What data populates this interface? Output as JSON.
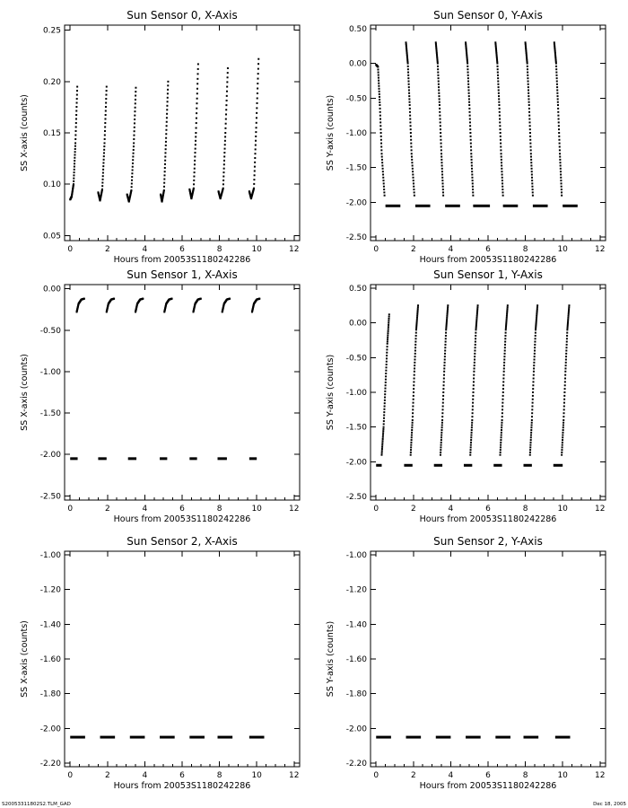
{
  "footer": {
    "left": "S20053311802S2.TLM_GAD",
    "right": "Dec 18, 2005"
  },
  "chart_data": [
    {
      "type": "scatter",
      "title": "Sun Sensor 0, X-Axis",
      "xlabel": "Hours from 20053S1180242286",
      "ylabel": "SS X-axis (counts)",
      "xlim": [
        -0.3,
        12.3
      ],
      "ylim": [
        0.045,
        0.255
      ],
      "xticks": [
        0,
        2,
        4,
        6,
        8,
        10,
        12
      ],
      "xtick_labels": [
        "0",
        "2",
        "4",
        "6",
        "8",
        "10",
        "12"
      ],
      "yticks": [
        0.05,
        0.1,
        0.15,
        0.2,
        0.25
      ],
      "ytick_labels": [
        "0.05",
        "0.10",
        "0.15",
        "0.20",
        "0.25"
      ],
      "segments": [
        {
          "x": [
            0.0,
            0.08,
            0.18,
            0.28,
            0.38
          ],
          "y": [
            0.085,
            0.088,
            0.1,
            0.14,
            0.195
          ]
        },
        {
          "x": [
            1.5,
            1.6,
            1.72,
            1.84,
            1.95
          ],
          "y": [
            0.092,
            0.084,
            0.095,
            0.14,
            0.195
          ]
        },
        {
          "x": [
            3.05,
            3.15,
            3.28,
            3.41,
            3.52
          ],
          "y": [
            0.09,
            0.083,
            0.094,
            0.14,
            0.194
          ]
        },
        {
          "x": [
            4.85,
            4.92,
            5.03,
            5.14,
            5.25
          ],
          "y": [
            0.09,
            0.083,
            0.094,
            0.145,
            0.2
          ]
        },
        {
          "x": [
            6.4,
            6.5,
            6.62,
            6.74,
            6.86
          ],
          "y": [
            0.095,
            0.086,
            0.096,
            0.15,
            0.217
          ]
        },
        {
          "x": [
            7.95,
            8.05,
            8.2,
            8.32,
            8.45
          ],
          "y": [
            0.093,
            0.086,
            0.096,
            0.15,
            0.213
          ]
        },
        {
          "x": [
            9.6,
            9.7,
            9.85,
            9.97,
            10.1
          ],
          "y": [
            0.093,
            0.086,
            0.096,
            0.155,
            0.222
          ]
        }
      ]
    },
    {
      "type": "scatter",
      "title": "Sun Sensor 0, Y-Axis",
      "xlabel": "Hours from 20053S1180242286",
      "ylabel": "SS Y-axis (counts)",
      "xlim": [
        -0.3,
        12.3
      ],
      "ylim": [
        -2.55,
        0.55
      ],
      "xticks": [
        0,
        2,
        4,
        6,
        8,
        10,
        12
      ],
      "xtick_labels": [
        "0",
        "2",
        "4",
        "6",
        "8",
        "10",
        "12"
      ],
      "yticks": [
        -2.5,
        -2.0,
        -1.5,
        -1.0,
        -0.5,
        0.0,
        0.5
      ],
      "ytick_labels": [
        "-2.50",
        "-2.00",
        "-1.50",
        "-1.00",
        "-0.50",
        "0.00",
        "0.50"
      ],
      "segments": [
        {
          "x": [
            0.0,
            0.1,
            0.2,
            0.3,
            0.45
          ],
          "y": [
            -0.02,
            -0.05,
            -0.6,
            -1.3,
            -1.9
          ]
        },
        {
          "x": [
            1.6,
            1.7,
            1.8,
            1.9,
            2.05
          ],
          "y": [
            0.3,
            0.0,
            -0.6,
            -1.3,
            -1.9
          ]
        },
        {
          "x": [
            3.2,
            3.3,
            3.4,
            3.5,
            3.6
          ],
          "y": [
            0.3,
            0.0,
            -0.6,
            -1.3,
            -1.9
          ]
        },
        {
          "x": [
            4.8,
            4.9,
            5.0,
            5.1,
            5.2
          ],
          "y": [
            0.3,
            0.0,
            -0.6,
            -1.3,
            -1.9
          ]
        },
        {
          "x": [
            6.4,
            6.5,
            6.6,
            6.7,
            6.8
          ],
          "y": [
            0.3,
            0.0,
            -0.6,
            -1.3,
            -1.9
          ]
        },
        {
          "x": [
            8.0,
            8.1,
            8.2,
            8.3,
            8.4
          ],
          "y": [
            0.3,
            0.0,
            -0.6,
            -1.3,
            -1.9
          ]
        },
        {
          "x": [
            9.55,
            9.65,
            9.75,
            9.85,
            9.95
          ],
          "y": [
            0.3,
            0.0,
            -0.6,
            -1.3,
            -1.9
          ]
        }
      ],
      "floor_segments": [
        {
          "x": [
            0.5,
            1.3
          ],
          "y": -2.05
        },
        {
          "x": [
            2.1,
            2.9
          ],
          "y": -2.05
        },
        {
          "x": [
            3.7,
            4.5
          ],
          "y": -2.05
        },
        {
          "x": [
            5.2,
            6.1
          ],
          "y": -2.05
        },
        {
          "x": [
            6.8,
            7.6
          ],
          "y": -2.05
        },
        {
          "x": [
            8.4,
            9.2
          ],
          "y": -2.05
        },
        {
          "x": [
            10.0,
            10.8
          ],
          "y": -2.05
        }
      ]
    },
    {
      "type": "scatter",
      "title": "Sun Sensor 1, X-Axis",
      "xlabel": "Hours from 20053S1180242286",
      "ylabel": "SS X-axis (counts)",
      "xlim": [
        -0.3,
        12.3
      ],
      "ylim": [
        -2.55,
        0.05
      ],
      "xticks": [
        0,
        2,
        4,
        6,
        8,
        10,
        12
      ],
      "xtick_labels": [
        "0",
        "2",
        "4",
        "6",
        "8",
        "10",
        "12"
      ],
      "yticks": [
        -2.5,
        -2.0,
        -1.5,
        -1.0,
        -0.5,
        0.0
      ],
      "ytick_labels": [
        "-2.50",
        "-2.00",
        "-1.50",
        "-1.00",
        "-0.50",
        "0.00"
      ],
      "segments": [
        {
          "x": [
            0.35,
            0.45,
            0.6,
            0.75
          ],
          "y": [
            -0.28,
            -0.18,
            -0.13,
            -0.12
          ]
        },
        {
          "x": [
            1.95,
            2.05,
            2.2,
            2.35
          ],
          "y": [
            -0.28,
            -0.18,
            -0.13,
            -0.12
          ]
        },
        {
          "x": [
            3.5,
            3.6,
            3.75,
            3.9
          ],
          "y": [
            -0.28,
            -0.18,
            -0.13,
            -0.12
          ]
        },
        {
          "x": [
            5.05,
            5.15,
            5.3,
            5.45
          ],
          "y": [
            -0.28,
            -0.18,
            -0.13,
            -0.12
          ]
        },
        {
          "x": [
            6.6,
            6.7,
            6.85,
            7.0
          ],
          "y": [
            -0.28,
            -0.18,
            -0.13,
            -0.12
          ]
        },
        {
          "x": [
            8.15,
            8.25,
            8.4,
            8.55
          ],
          "y": [
            -0.28,
            -0.18,
            -0.13,
            -0.12
          ]
        },
        {
          "x": [
            9.75,
            9.85,
            10.0,
            10.15
          ],
          "y": [
            -0.28,
            -0.18,
            -0.13,
            -0.12
          ]
        }
      ],
      "floor_segments": [
        {
          "x": [
            0.0,
            0.4
          ],
          "y": -2.05
        },
        {
          "x": [
            1.5,
            1.95
          ],
          "y": -2.05
        },
        {
          "x": [
            3.1,
            3.55
          ],
          "y": -2.05
        },
        {
          "x": [
            4.8,
            5.2
          ],
          "y": -2.05
        },
        {
          "x": [
            6.4,
            6.8
          ],
          "y": -2.05
        },
        {
          "x": [
            7.9,
            8.4
          ],
          "y": -2.05
        },
        {
          "x": [
            9.6,
            10.0
          ],
          "y": -2.05
        }
      ]
    },
    {
      "type": "scatter",
      "title": "Sun Sensor 1, Y-Axis",
      "xlabel": "Hours from 20053S1180242286",
      "ylabel": "SS Y-axis (counts)",
      "xlim": [
        -0.3,
        12.3
      ],
      "ylim": [
        -2.55,
        0.55
      ],
      "xticks": [
        0,
        2,
        4,
        6,
        8,
        10,
        12
      ],
      "xtick_labels": [
        "0",
        "2",
        "4",
        "6",
        "8",
        "10",
        "12"
      ],
      "yticks": [
        -2.5,
        -2.0,
        -1.5,
        -1.0,
        -0.5,
        0.0,
        0.5
      ],
      "ytick_labels": [
        "-2.50",
        "-2.00",
        "-1.50",
        "-1.00",
        "-0.50",
        "0.00",
        "0.50"
      ],
      "segments": [
        {
          "x": [
            0.3,
            0.4,
            0.5,
            0.6,
            0.7
          ],
          "y": [
            -1.9,
            -1.5,
            -0.9,
            -0.3,
            0.12
          ]
        },
        {
          "x": [
            1.85,
            1.95,
            2.05,
            2.15,
            2.25
          ],
          "y": [
            -1.9,
            -1.4,
            -0.7,
            -0.1,
            0.25
          ]
        },
        {
          "x": [
            3.45,
            3.55,
            3.65,
            3.75,
            3.85
          ],
          "y": [
            -1.9,
            -1.4,
            -0.7,
            -0.1,
            0.25
          ]
        },
        {
          "x": [
            5.05,
            5.15,
            5.25,
            5.35,
            5.45
          ],
          "y": [
            -1.9,
            -1.4,
            -0.7,
            -0.1,
            0.25
          ]
        },
        {
          "x": [
            6.65,
            6.75,
            6.85,
            6.95,
            7.05
          ],
          "y": [
            -1.9,
            -1.4,
            -0.7,
            -0.1,
            0.25
          ]
        },
        {
          "x": [
            8.25,
            8.35,
            8.45,
            8.55,
            8.65
          ],
          "y": [
            -1.9,
            -1.4,
            -0.7,
            -0.1,
            0.25
          ]
        },
        {
          "x": [
            9.95,
            10.05,
            10.15,
            10.25,
            10.35
          ],
          "y": [
            -1.9,
            -1.4,
            -0.7,
            -0.1,
            0.25
          ]
        }
      ],
      "floor_segments": [
        {
          "x": [
            0.0,
            0.3
          ],
          "y": -2.05
        },
        {
          "x": [
            1.5,
            1.95
          ],
          "y": -2.05
        },
        {
          "x": [
            3.1,
            3.55
          ],
          "y": -2.05
        },
        {
          "x": [
            4.7,
            5.15
          ],
          "y": -2.05
        },
        {
          "x": [
            6.3,
            6.75
          ],
          "y": -2.05
        },
        {
          "x": [
            7.9,
            8.35
          ],
          "y": -2.05
        },
        {
          "x": [
            9.5,
            10.0
          ],
          "y": -2.05
        }
      ]
    },
    {
      "type": "scatter",
      "title": "Sun Sensor 2, X-Axis",
      "xlabel": "Hours from 20053S1180242286",
      "ylabel": "SS X-axis (counts)",
      "xlim": [
        -0.3,
        12.3
      ],
      "ylim": [
        -2.22,
        -0.98
      ],
      "xticks": [
        0,
        2,
        4,
        6,
        8,
        10,
        12
      ],
      "xtick_labels": [
        "0",
        "2",
        "4",
        "6",
        "8",
        "10",
        "12"
      ],
      "yticks": [
        -2.2,
        -2.0,
        -1.8,
        -1.6,
        -1.4,
        -1.2,
        -1.0
      ],
      "ytick_labels": [
        "-2.20",
        "-2.00",
        "-1.80",
        "-1.60",
        "-1.40",
        "-1.20",
        "-1.00"
      ],
      "segments": [],
      "floor_segments": [
        {
          "x": [
            0.0,
            0.8
          ],
          "y": -2.05
        },
        {
          "x": [
            1.6,
            2.4
          ],
          "y": -2.05
        },
        {
          "x": [
            3.2,
            4.0
          ],
          "y": -2.05
        },
        {
          "x": [
            4.8,
            5.6
          ],
          "y": -2.05
        },
        {
          "x": [
            6.4,
            7.2
          ],
          "y": -2.05
        },
        {
          "x": [
            7.9,
            8.7
          ],
          "y": -2.05
        },
        {
          "x": [
            9.6,
            10.4
          ],
          "y": -2.05
        }
      ]
    },
    {
      "type": "scatter",
      "title": "Sun Sensor 2, Y-Axis",
      "xlabel": "Hours from 20053S1180242286",
      "ylabel": "SS Y-axis (counts)",
      "xlim": [
        -0.3,
        12.3
      ],
      "ylim": [
        -2.22,
        -0.98
      ],
      "xticks": [
        0,
        2,
        4,
        6,
        8,
        10,
        12
      ],
      "xtick_labels": [
        "0",
        "2",
        "4",
        "6",
        "8",
        "10",
        "12"
      ],
      "yticks": [
        -2.2,
        -2.0,
        -1.8,
        -1.6,
        -1.4,
        -1.2,
        -1.0
      ],
      "ytick_labels": [
        "-2.20",
        "-2.00",
        "-1.80",
        "-1.60",
        "-1.40",
        "-1.20",
        "-1.00"
      ],
      "segments": [],
      "floor_segments": [
        {
          "x": [
            0.0,
            0.8
          ],
          "y": -2.05
        },
        {
          "x": [
            1.6,
            2.4
          ],
          "y": -2.05
        },
        {
          "x": [
            3.2,
            4.0
          ],
          "y": -2.05
        },
        {
          "x": [
            4.8,
            5.6
          ],
          "y": -2.05
        },
        {
          "x": [
            6.4,
            7.2
          ],
          "y": -2.05
        },
        {
          "x": [
            7.9,
            8.7
          ],
          "y": -2.05
        },
        {
          "x": [
            9.6,
            10.4
          ],
          "y": -2.05
        }
      ]
    }
  ]
}
